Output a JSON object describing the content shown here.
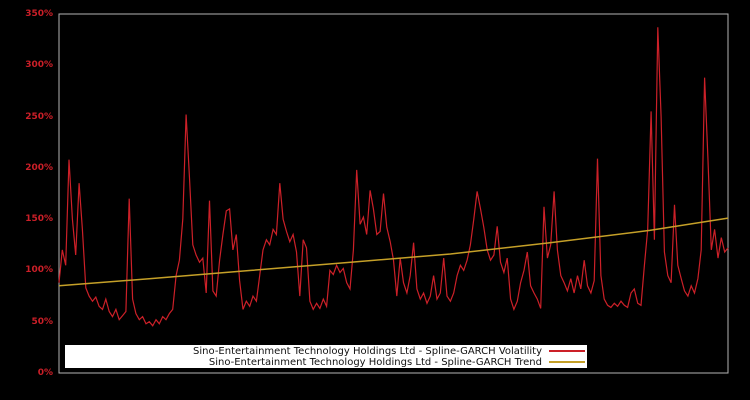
{
  "window": {
    "background": "#000000",
    "plot_border_color": "#b3b3b3",
    "axis_label_color": "#cc1f28"
  },
  "chart_data": {
    "type": "line",
    "title": "",
    "xlabel": "",
    "ylabel": "",
    "grid": false,
    "legend_position": "bottom-center-inside",
    "ylim": [
      0,
      350
    ],
    "yticks": [
      {
        "label": "0%",
        "value": 0
      },
      {
        "label": "50%",
        "value": 50
      },
      {
        "label": "100%",
        "value": 100
      },
      {
        "label": "150%",
        "value": 150
      },
      {
        "label": "200%",
        "value": 200
      },
      {
        "label": "250%",
        "value": 250
      },
      {
        "label": "300%",
        "value": 300
      },
      {
        "label": "350%",
        "value": 350
      }
    ],
    "series": [
      {
        "name": "Sino-Entertainment Technology Holdings Ltd - Spline-GARCH Volatility",
        "color": "#cc2028",
        "unit": "percent",
        "values": [
          88,
          120,
          105,
          208,
          150,
          115,
          185,
          140,
          83,
          75,
          70,
          74,
          65,
          62,
          72,
          60,
          55,
          62,
          52,
          56,
          60,
          170,
          72,
          58,
          52,
          55,
          48,
          50,
          46,
          52,
          48,
          55,
          52,
          58,
          62,
          95,
          110,
          150,
          252,
          190,
          125,
          115,
          108,
          112,
          78,
          168,
          80,
          75,
          110,
          135,
          158,
          160,
          120,
          135,
          90,
          62,
          70,
          65,
          75,
          70,
          95,
          120,
          130,
          125,
          140,
          135,
          185,
          150,
          138,
          128,
          135,
          118,
          75,
          130,
          122,
          70,
          62,
          68,
          63,
          72,
          65,
          100,
          96,
          105,
          98,
          102,
          88,
          82,
          120,
          198,
          145,
          152,
          135,
          178,
          160,
          135,
          138,
          175,
          142,
          128,
          110,
          75,
          112,
          88,
          78,
          95,
          127,
          82,
          72,
          78,
          68,
          75,
          95,
          72,
          78,
          112,
          75,
          70,
          78,
          95,
          105,
          100,
          110,
          125,
          150,
          177,
          160,
          142,
          120,
          110,
          115,
          143,
          108,
          98,
          112,
          72,
          62,
          70,
          88,
          100,
          118,
          85,
          78,
          72,
          63,
          162,
          112,
          125,
          177,
          120,
          95,
          88,
          80,
          92,
          78,
          95,
          82,
          110,
          85,
          78,
          90,
          209,
          95,
          72,
          66,
          64,
          68,
          65,
          70,
          66,
          64,
          78,
          82,
          68,
          66,
          105,
          140,
          255,
          130,
          337,
          250,
          118,
          95,
          88,
          164,
          105,
          92,
          80,
          75,
          85,
          78,
          92,
          120,
          288,
          210,
          120,
          140,
          112,
          132,
          118,
          122
        ]
      },
      {
        "name": "Sino-Entertainment Technology Holdings Ltd - Spline-GARCH Trend",
        "color": "#c5a028",
        "unit": "percent",
        "x_frac": [
          0,
          0.137,
          0.287,
          0.436,
          0.585,
          0.734,
          0.883,
          1.0
        ],
        "values": [
          85,
          92,
          100,
          108,
          116,
          127,
          139,
          151
        ]
      }
    ]
  }
}
